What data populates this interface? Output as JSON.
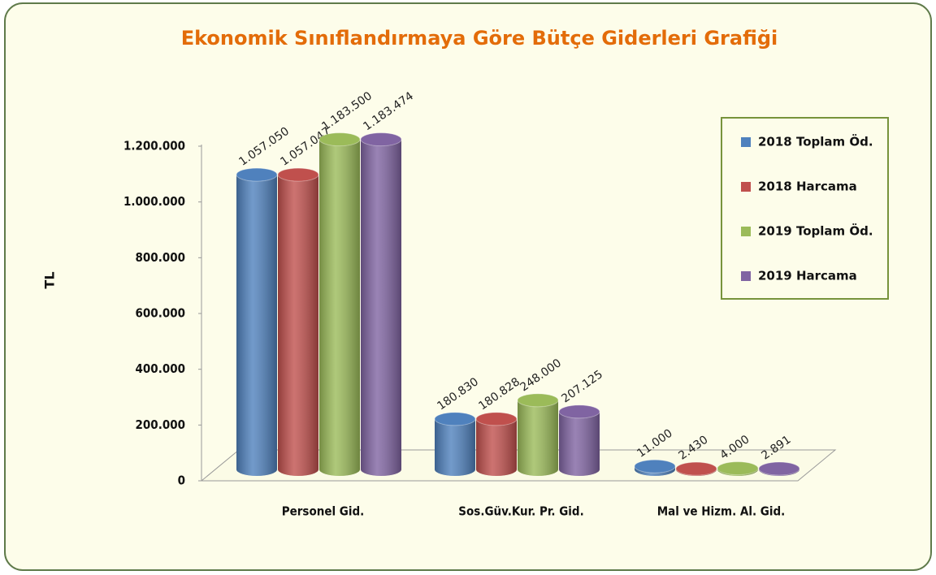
{
  "chart_data": {
    "type": "bar",
    "title": "Ekonomik Sınıflandırmaya Göre Bütçe Giderleri Grafiği",
    "y_label": "TL",
    "categories": [
      "Personel Gid.",
      "Sos.Güv.Kur. Pr. Gid.",
      "Mal ve Hizm. Al. Gid."
    ],
    "series": [
      {
        "name": "2018 Toplam Öd.",
        "color": "#4f81bd",
        "values": [
          1057050,
          180830,
          11000
        ],
        "value_labels": [
          "1.057.050",
          "180.830",
          "11.000"
        ]
      },
      {
        "name": "2018 Harcama",
        "color": "#c0504d",
        "values": [
          1057047,
          180828,
          2430
        ],
        "value_labels": [
          "1.057.047",
          "180.828",
          "2.430"
        ]
      },
      {
        "name": "2019 Toplam Öd.",
        "color": "#9bbb59",
        "values": [
          1183500,
          248000,
          4000
        ],
        "value_labels": [
          "1.183.500",
          "248.000",
          "4.000"
        ]
      },
      {
        "name": "2019 Harcama",
        "color": "#8064a2",
        "values": [
          1183474,
          207125,
          2891
        ],
        "value_labels": [
          "1.183.474",
          "207.125",
          "2.891"
        ]
      }
    ],
    "ylim": [
      0,
      1200000
    ],
    "yticks": [
      0,
      {
        "value": 200000,
        "label": "200.000"
      },
      {
        "value": 400000,
        "label": "400.000"
      },
      {
        "value": 600000,
        "label": "600.000"
      },
      {
        "value": 800000,
        "label": "800.000"
      },
      {
        "value": 1000000,
        "label": "1.000.000"
      },
      {
        "value": 1200000,
        "label": "1.200.000"
      }
    ],
    "legend": "right"
  }
}
